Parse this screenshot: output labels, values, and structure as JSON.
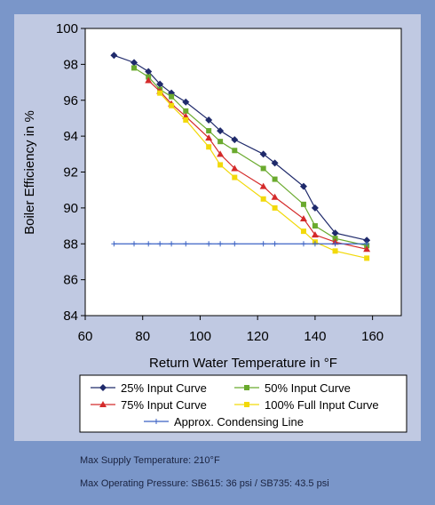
{
  "chart_data": {
    "type": "line",
    "xlabel": "Return Water Temperature in °F",
    "ylabel": "Boiler Efficiency in %",
    "xlim": [
      60,
      170
    ],
    "ylim": [
      84,
      100
    ],
    "x_ticks": [
      60,
      80,
      100,
      120,
      140,
      160
    ],
    "y_ticks": [
      84,
      86,
      88,
      90,
      92,
      94,
      96,
      98,
      100
    ],
    "grid": false,
    "legend_position": "bottom",
    "series": [
      {
        "name": "25% Input Curve",
        "color": "#1f2a6b",
        "marker": "diamond",
        "x": [
          70,
          77,
          82,
          86,
          90,
          95,
          103,
          107,
          112,
          122,
          126,
          136,
          140,
          147,
          158
        ],
        "y": [
          98.5,
          98.1,
          97.6,
          96.9,
          96.4,
          95.9,
          94.9,
          94.3,
          93.8,
          93.0,
          92.5,
          91.2,
          90.0,
          88.6,
          88.2
        ]
      },
      {
        "name": "50% Input Curve",
        "color": "#6aaa2e",
        "marker": "square",
        "x": [
          77,
          82,
          86,
          90,
          95,
          103,
          107,
          112,
          122,
          126,
          136,
          140,
          147,
          158
        ],
        "y": [
          97.8,
          97.3,
          96.6,
          96.2,
          95.4,
          94.3,
          93.7,
          93.2,
          92.2,
          91.6,
          90.2,
          89.0,
          88.3,
          87.9
        ]
      },
      {
        "name": "75% Input Curve",
        "color": "#d42a2a",
        "marker": "triangle",
        "x": [
          82,
          86,
          90,
          95,
          103,
          107,
          112,
          122,
          126,
          136,
          140,
          147,
          158
        ],
        "y": [
          97.1,
          96.5,
          95.8,
          95.1,
          93.9,
          93.0,
          92.2,
          91.2,
          90.6,
          89.4,
          88.5,
          88.1,
          87.7
        ]
      },
      {
        "name": "100% Full Input Curve",
        "color": "#f2d90a",
        "marker": "square",
        "x": [
          86,
          90,
          95,
          103,
          107,
          112,
          122,
          126,
          136,
          140,
          147,
          158
        ],
        "y": [
          96.4,
          95.7,
          94.9,
          93.4,
          92.4,
          91.7,
          90.5,
          90.0,
          88.7,
          88.1,
          87.6,
          87.2
        ]
      },
      {
        "name": "Approx. Condensing Line",
        "color": "#3b62c4",
        "marker": "plus",
        "x": [
          70,
          77,
          82,
          86,
          90,
          95,
          103,
          107,
          112,
          122,
          126,
          136,
          140,
          147,
          158
        ],
        "y": [
          88,
          88,
          88,
          88,
          88,
          88,
          88,
          88,
          88,
          88,
          88,
          88,
          88,
          88,
          88
        ]
      }
    ]
  },
  "notes": {
    "supply_temp": "Max Supply Temperature: 210°F",
    "operating_pressure": "Max Operating Pressure: SB615: 36 psi / SB735: 43.5 psi"
  }
}
